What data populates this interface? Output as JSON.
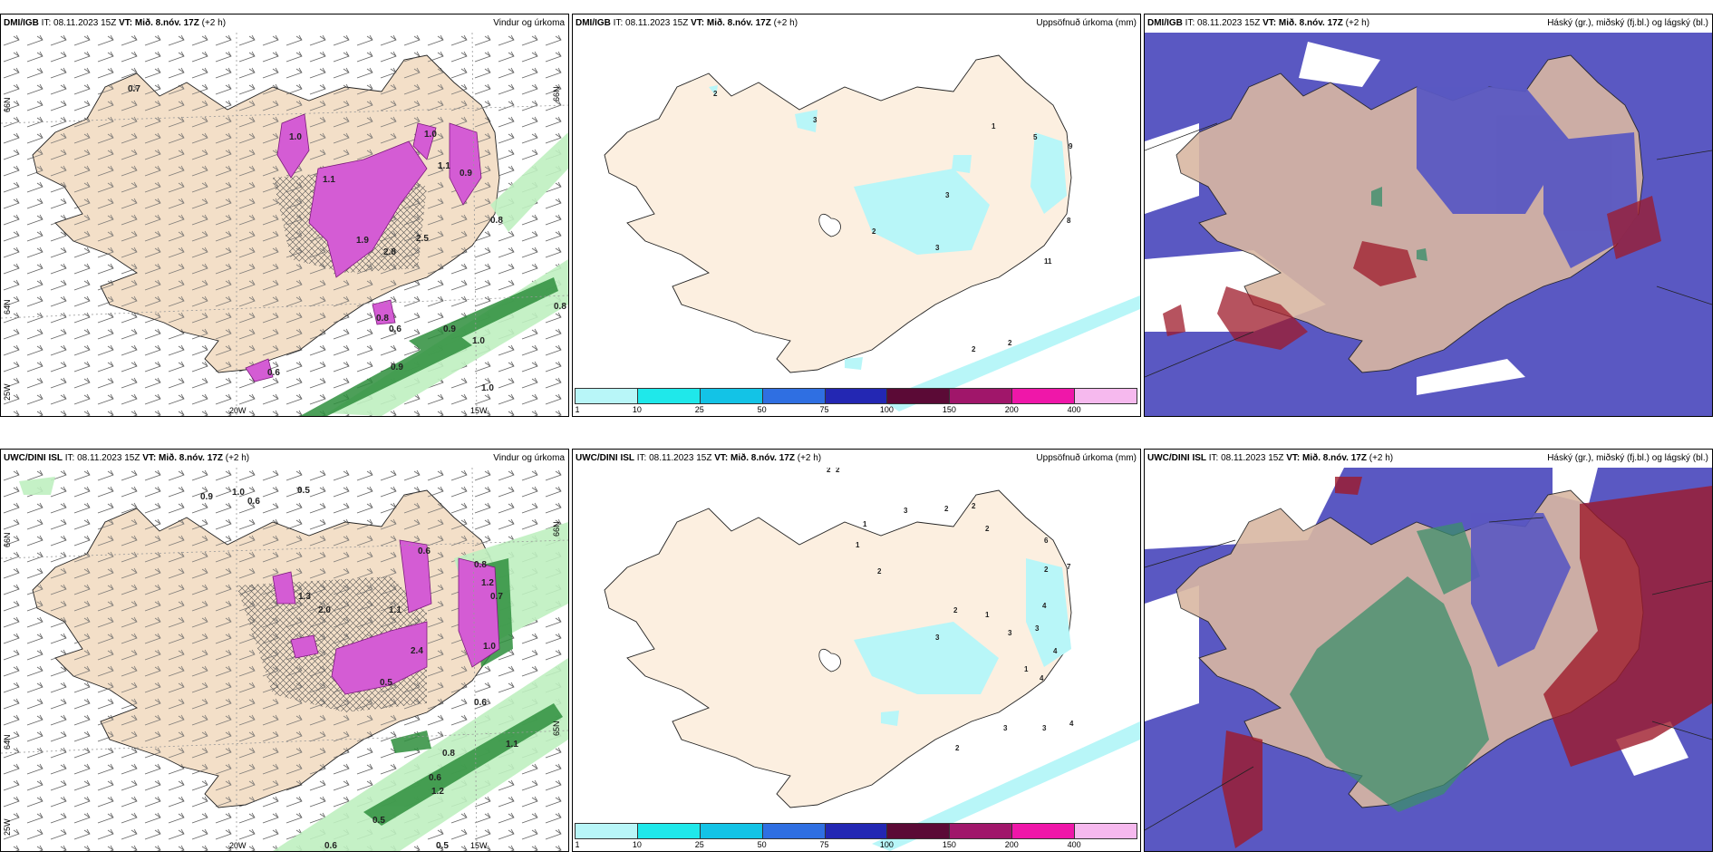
{
  "colors": {
    "land": "#f3dfc8",
    "wind": "#555555",
    "precip_pink": "#d45cd4",
    "precip_green": "#3fa94f",
    "cloud_high": "#3d3aa8",
    "cloud_mid": "#3c8f6b",
    "cloud_low": "#9e1a2a",
    "cyan": "#8ff1f5"
  },
  "rows": [
    {
      "model": "DMI/IGB",
      "it_label": "IT:",
      "it": "08.11.2023 15Z",
      "vt_label": "VT:",
      "vt": "Mið. 8.nóv. 17Z",
      "lead": "(+2 h)"
    },
    {
      "model": "UWC/DINI ISL",
      "it_label": "IT:",
      "it": "08.11.2023 15Z",
      "vt_label": "VT:",
      "vt": "Mið. 8.nóv. 17Z",
      "lead": "(+2 h)"
    }
  ],
  "titles": {
    "wind": "Vindur og úrkoma",
    "accum": "Uppsöfnuð úrkoma (mm)",
    "clouds": "Háský (gr.), miðský (fj.bl.) og lágský (bl.)"
  },
  "axis": {
    "lat66": "66N",
    "lat64": "64N",
    "lat65": "65N",
    "lon20": "20W",
    "lon15": "15W",
    "lon25": "25W"
  },
  "colorbar": {
    "ticks": [
      "1",
      "10",
      "25",
      "50",
      "75",
      "100",
      "150",
      "200",
      "400"
    ],
    "colors": [
      "#b8f6f8",
      "#1fe8ea",
      "#13c3e6",
      "#2f6fe2",
      "#2327b3",
      "#5b0a36",
      "#a0166a",
      "#ef17a9",
      "#f6b9ee"
    ]
  },
  "wind_labels_top": [
    "0.7",
    "1.0",
    "1.1",
    "1.9",
    "2.8",
    "2.5",
    "1.1",
    "0.8",
    "0.9",
    "1.0",
    "0.6",
    "1.0",
    "1.0",
    "0.9",
    "0.8",
    "0.9",
    "0.6",
    "0.8"
  ],
  "wind_labels_bottom": [
    "0.9",
    "1.0",
    "0.6",
    "0.5",
    "0.8",
    "1.2",
    "0.6",
    "1.3",
    "2.0",
    "1.1",
    "2.4",
    "1.0",
    "0.7",
    "0.5",
    "0.6",
    "0.8",
    "1.1",
    "0.5",
    "0.6",
    "1.2",
    "0.6",
    "0.5"
  ],
  "accum_labels_top": [
    "3",
    "1",
    "5",
    "9",
    "3",
    "2",
    "8",
    "3",
    "11",
    "2",
    "2",
    "2"
  ],
  "accum_labels_bottom": [
    "2",
    "2",
    "1",
    "3",
    "2",
    "2",
    "6",
    "2",
    "1",
    "2",
    "7",
    "2",
    "4",
    "2",
    "1",
    "3",
    "3",
    "4",
    "1",
    "4",
    "3",
    "2",
    "3",
    "4",
    "3"
  ]
}
